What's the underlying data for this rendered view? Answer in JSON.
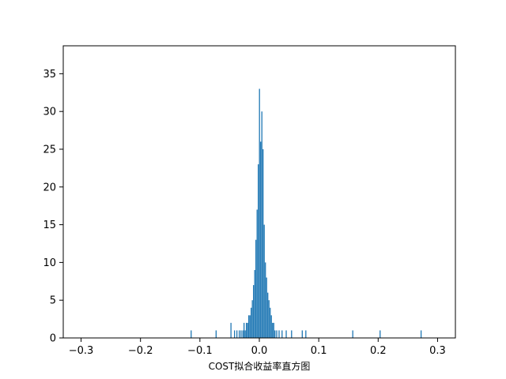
{
  "chart_data": {
    "type": "bar",
    "title": "",
    "xlabel": "COST拟合收益率直方图",
    "ylabel": "",
    "xlim": [
      -0.33,
      0.33
    ],
    "ylim": [
      0,
      38.7
    ],
    "grid": false,
    "bar_color": "#1f77b4",
    "bin_width": 0.0012,
    "x_ticks": [
      -0.3,
      -0.2,
      -0.1,
      0.0,
      0.1,
      0.2,
      0.3
    ],
    "x_tick_labels": [
      "−0.3",
      "−0.2",
      "−0.1",
      "0.0",
      "0.1",
      "0.2",
      "0.3"
    ],
    "y_ticks": [
      0,
      5,
      10,
      15,
      20,
      25,
      30,
      35
    ],
    "y_tick_labels": [
      "0",
      "5",
      "10",
      "15",
      "20",
      "25",
      "30",
      "35"
    ],
    "bins": [
      {
        "x": -0.115,
        "count": 1
      },
      {
        "x": -0.073,
        "count": 1
      },
      {
        "x": -0.048,
        "count": 2
      },
      {
        "x": -0.042,
        "count": 1
      },
      {
        "x": -0.038,
        "count": 1
      },
      {
        "x": -0.034,
        "count": 1
      },
      {
        "x": -0.031,
        "count": 1
      },
      {
        "x": -0.028,
        "count": 1
      },
      {
        "x": -0.026,
        "count": 2
      },
      {
        "x": -0.024,
        "count": 1
      },
      {
        "x": -0.022,
        "count": 2
      },
      {
        "x": -0.02,
        "count": 2
      },
      {
        "x": -0.018,
        "count": 3
      },
      {
        "x": -0.016,
        "count": 3
      },
      {
        "x": -0.014,
        "count": 4
      },
      {
        "x": -0.012,
        "count": 5
      },
      {
        "x": -0.01,
        "count": 7
      },
      {
        "x": -0.008,
        "count": 9
      },
      {
        "x": -0.006,
        "count": 13
      },
      {
        "x": -0.004,
        "count": 17
      },
      {
        "x": -0.002,
        "count": 23
      },
      {
        "x": 0.0,
        "count": 33
      },
      {
        "x": 0.002,
        "count": 26
      },
      {
        "x": 0.004,
        "count": 30
      },
      {
        "x": 0.006,
        "count": 25
      },
      {
        "x": 0.008,
        "count": 15
      },
      {
        "x": 0.01,
        "count": 10
      },
      {
        "x": 0.012,
        "count": 8
      },
      {
        "x": 0.014,
        "count": 6
      },
      {
        "x": 0.016,
        "count": 5
      },
      {
        "x": 0.018,
        "count": 4
      },
      {
        "x": 0.02,
        "count": 3
      },
      {
        "x": 0.022,
        "count": 2
      },
      {
        "x": 0.024,
        "count": 2
      },
      {
        "x": 0.026,
        "count": 1
      },
      {
        "x": 0.029,
        "count": 1
      },
      {
        "x": 0.033,
        "count": 1
      },
      {
        "x": 0.038,
        "count": 1
      },
      {
        "x": 0.045,
        "count": 1
      },
      {
        "x": 0.054,
        "count": 1
      },
      {
        "x": 0.072,
        "count": 1
      },
      {
        "x": 0.078,
        "count": 1
      },
      {
        "x": 0.157,
        "count": 1
      },
      {
        "x": 0.203,
        "count": 1
      },
      {
        "x": 0.272,
        "count": 1
      }
    ]
  }
}
